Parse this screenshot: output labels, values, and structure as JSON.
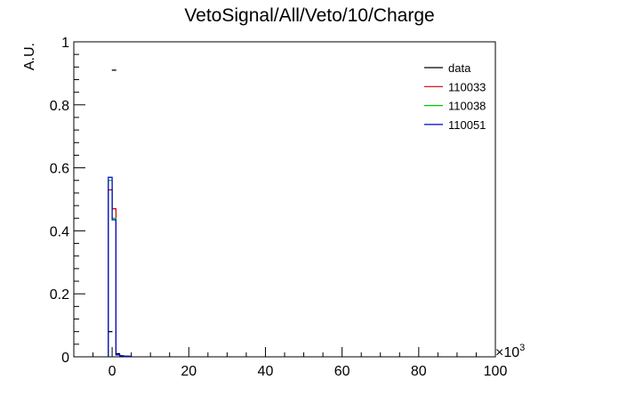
{
  "chart_data": {
    "type": "histogram",
    "title": "VetoSignal/All/Veto/10/Charge",
    "xlabel": "",
    "ylabel": "A.U.",
    "x_multiplier": "×10",
    "x_multiplier_exp": "3",
    "xlim": [
      -10,
      100
    ],
    "ylim": [
      0,
      1
    ],
    "xticks": [
      0,
      20,
      40,
      60,
      80,
      100
    ],
    "yticks": [
      0,
      0.2,
      0.4,
      0.6,
      0.8,
      1
    ],
    "ytick_labels": [
      "0",
      "0.2",
      "0.4",
      "0.6",
      "0.8",
      "1"
    ],
    "bin_edges": [
      -1,
      0,
      1,
      2,
      3,
      4,
      5
    ],
    "series": [
      {
        "name": "data",
        "color": "#000000",
        "style": "markers",
        "values": [
          0.08,
          0.91,
          0.01,
          0.003,
          0.002,
          0.001
        ]
      },
      {
        "name": "110033",
        "color": "#cc0000",
        "style": "step",
        "values": [
          0.53,
          0.47,
          0.006,
          0.003,
          0.002,
          0.002
        ]
      },
      {
        "name": "110038",
        "color": "#00cc00",
        "style": "step",
        "values": [
          0.56,
          0.44,
          0.006,
          0.003,
          0.002,
          0.002
        ]
      },
      {
        "name": "110051",
        "color": "#0000cc",
        "style": "step",
        "values": [
          0.57,
          0.435,
          0.006,
          0.003,
          0.002,
          0.002
        ]
      }
    ],
    "legend_position": "top-right",
    "grid": false
  }
}
